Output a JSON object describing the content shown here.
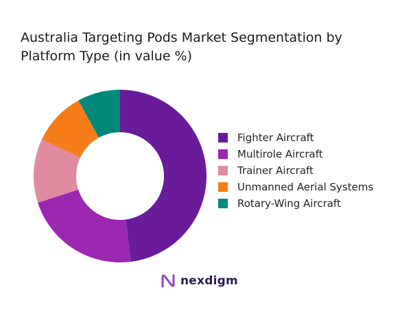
{
  "chart_data": {
    "type": "pie",
    "donut": true,
    "title": "Australia Targeting Pods Market Segmentation by Platform Type (in value %)",
    "categories": [
      "Fighter Aircraft",
      "Multirole Aircraft",
      "Trainer Aircraft",
      "Unmanned Aerial Systems",
      "Rotary-Wing Aircraft"
    ],
    "values": [
      48,
      22,
      12,
      10,
      8
    ],
    "colors": [
      "#6a1b9a",
      "#9c27b0",
      "#e08ba0",
      "#f57c17",
      "#00897b"
    ],
    "legend_position": "right",
    "start_angle_deg": 0,
    "direction": "clockwise"
  },
  "branding": {
    "logo_text": "nexdigm",
    "logo_icon": "nexdigm-logo-icon"
  }
}
